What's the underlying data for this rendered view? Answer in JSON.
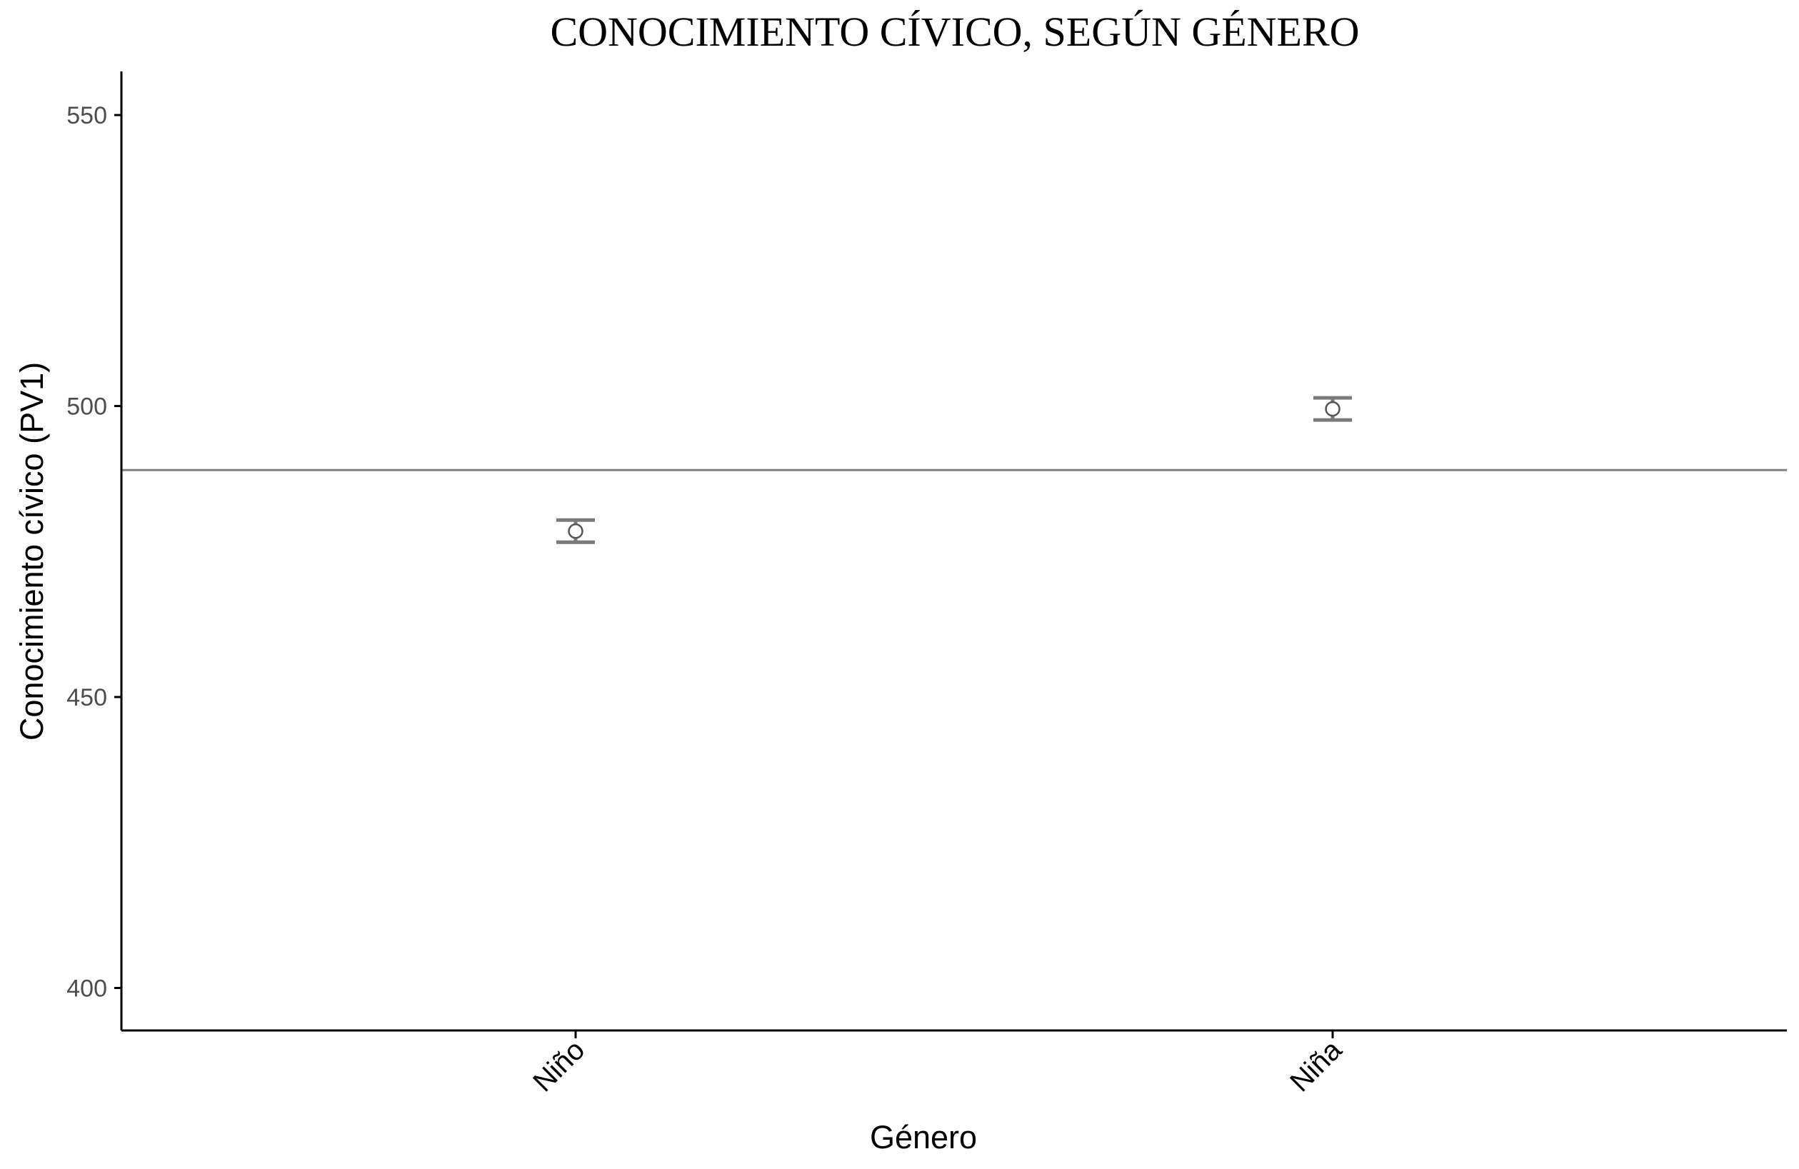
{
  "chart_data": {
    "type": "scatter",
    "title": "CONOCIMIENTO CÍVICO, SEGÚN GÉNERO",
    "xlabel": "Género",
    "ylabel": "Conocimiento cívico (PV1)",
    "categories": [
      "Niño",
      "Niña"
    ],
    "series": [
      {
        "values": [
          478.5,
          499.5
        ],
        "error_low": [
          476.6,
          497.6
        ],
        "error_high": [
          480.4,
          501.4
        ]
      }
    ],
    "y_ticks": [
      400,
      450,
      500,
      550
    ],
    "ylim": [
      392.7,
      557.5
    ],
    "reference_line": 489,
    "grid": false,
    "legend": "none",
    "colors": {
      "point_stroke": "#555555",
      "errorbar": "#7a7a7a",
      "reference_line": "#808080",
      "axis": "#000000"
    }
  }
}
